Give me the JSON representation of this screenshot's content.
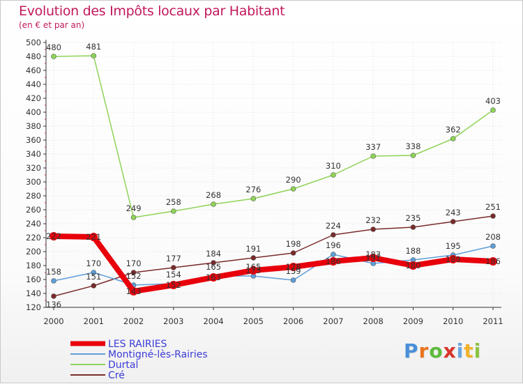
{
  "chart_data": {
    "type": "line",
    "title": "Evolution des Impôts locaux par Habitant",
    "subtitle": "(en € et par an)",
    "categories": [
      "2000",
      "2001",
      "2002",
      "2003",
      "2004",
      "2005",
      "2006",
      "2007",
      "2008",
      "2009",
      "2010",
      "2011"
    ],
    "ylim": [
      120,
      500
    ],
    "yticks": [
      120,
      140,
      160,
      180,
      200,
      220,
      240,
      260,
      280,
      300,
      320,
      340,
      360,
      380,
      400,
      420,
      440,
      460,
      480,
      500
    ],
    "series": [
      {
        "name": "LES RAIRIES",
        "color": "#e8000b",
        "values": [
          222,
          221,
          143,
          152,
          163,
          173,
          178,
          186,
          191,
          180,
          189,
          186
        ]
      },
      {
        "name": "Montigné-lès-Rairies",
        "color": "#5f9ed8",
        "values": [
          158,
          170,
          152,
          154,
          165,
          165,
          159,
          196,
          183,
          188,
          195,
          208
        ]
      },
      {
        "name": "Durtal",
        "color": "#8ed357",
        "values": [
          480,
          481,
          249,
          258,
          268,
          276,
          290,
          310,
          337,
          338,
          362,
          403
        ]
      },
      {
        "name": "Cré",
        "color": "#7a2a2a",
        "values": [
          136,
          151,
          170,
          177,
          184,
          191,
          198,
          224,
          232,
          235,
          243,
          251
        ]
      }
    ]
  },
  "brand": {
    "text": "Proxiti",
    "colors": [
      "#4a8fd8",
      "#e8731c",
      "#5dbb3c",
      "#d9342b",
      "#6aa7e0",
      "#f0b22a",
      "#8ac440"
    ]
  }
}
